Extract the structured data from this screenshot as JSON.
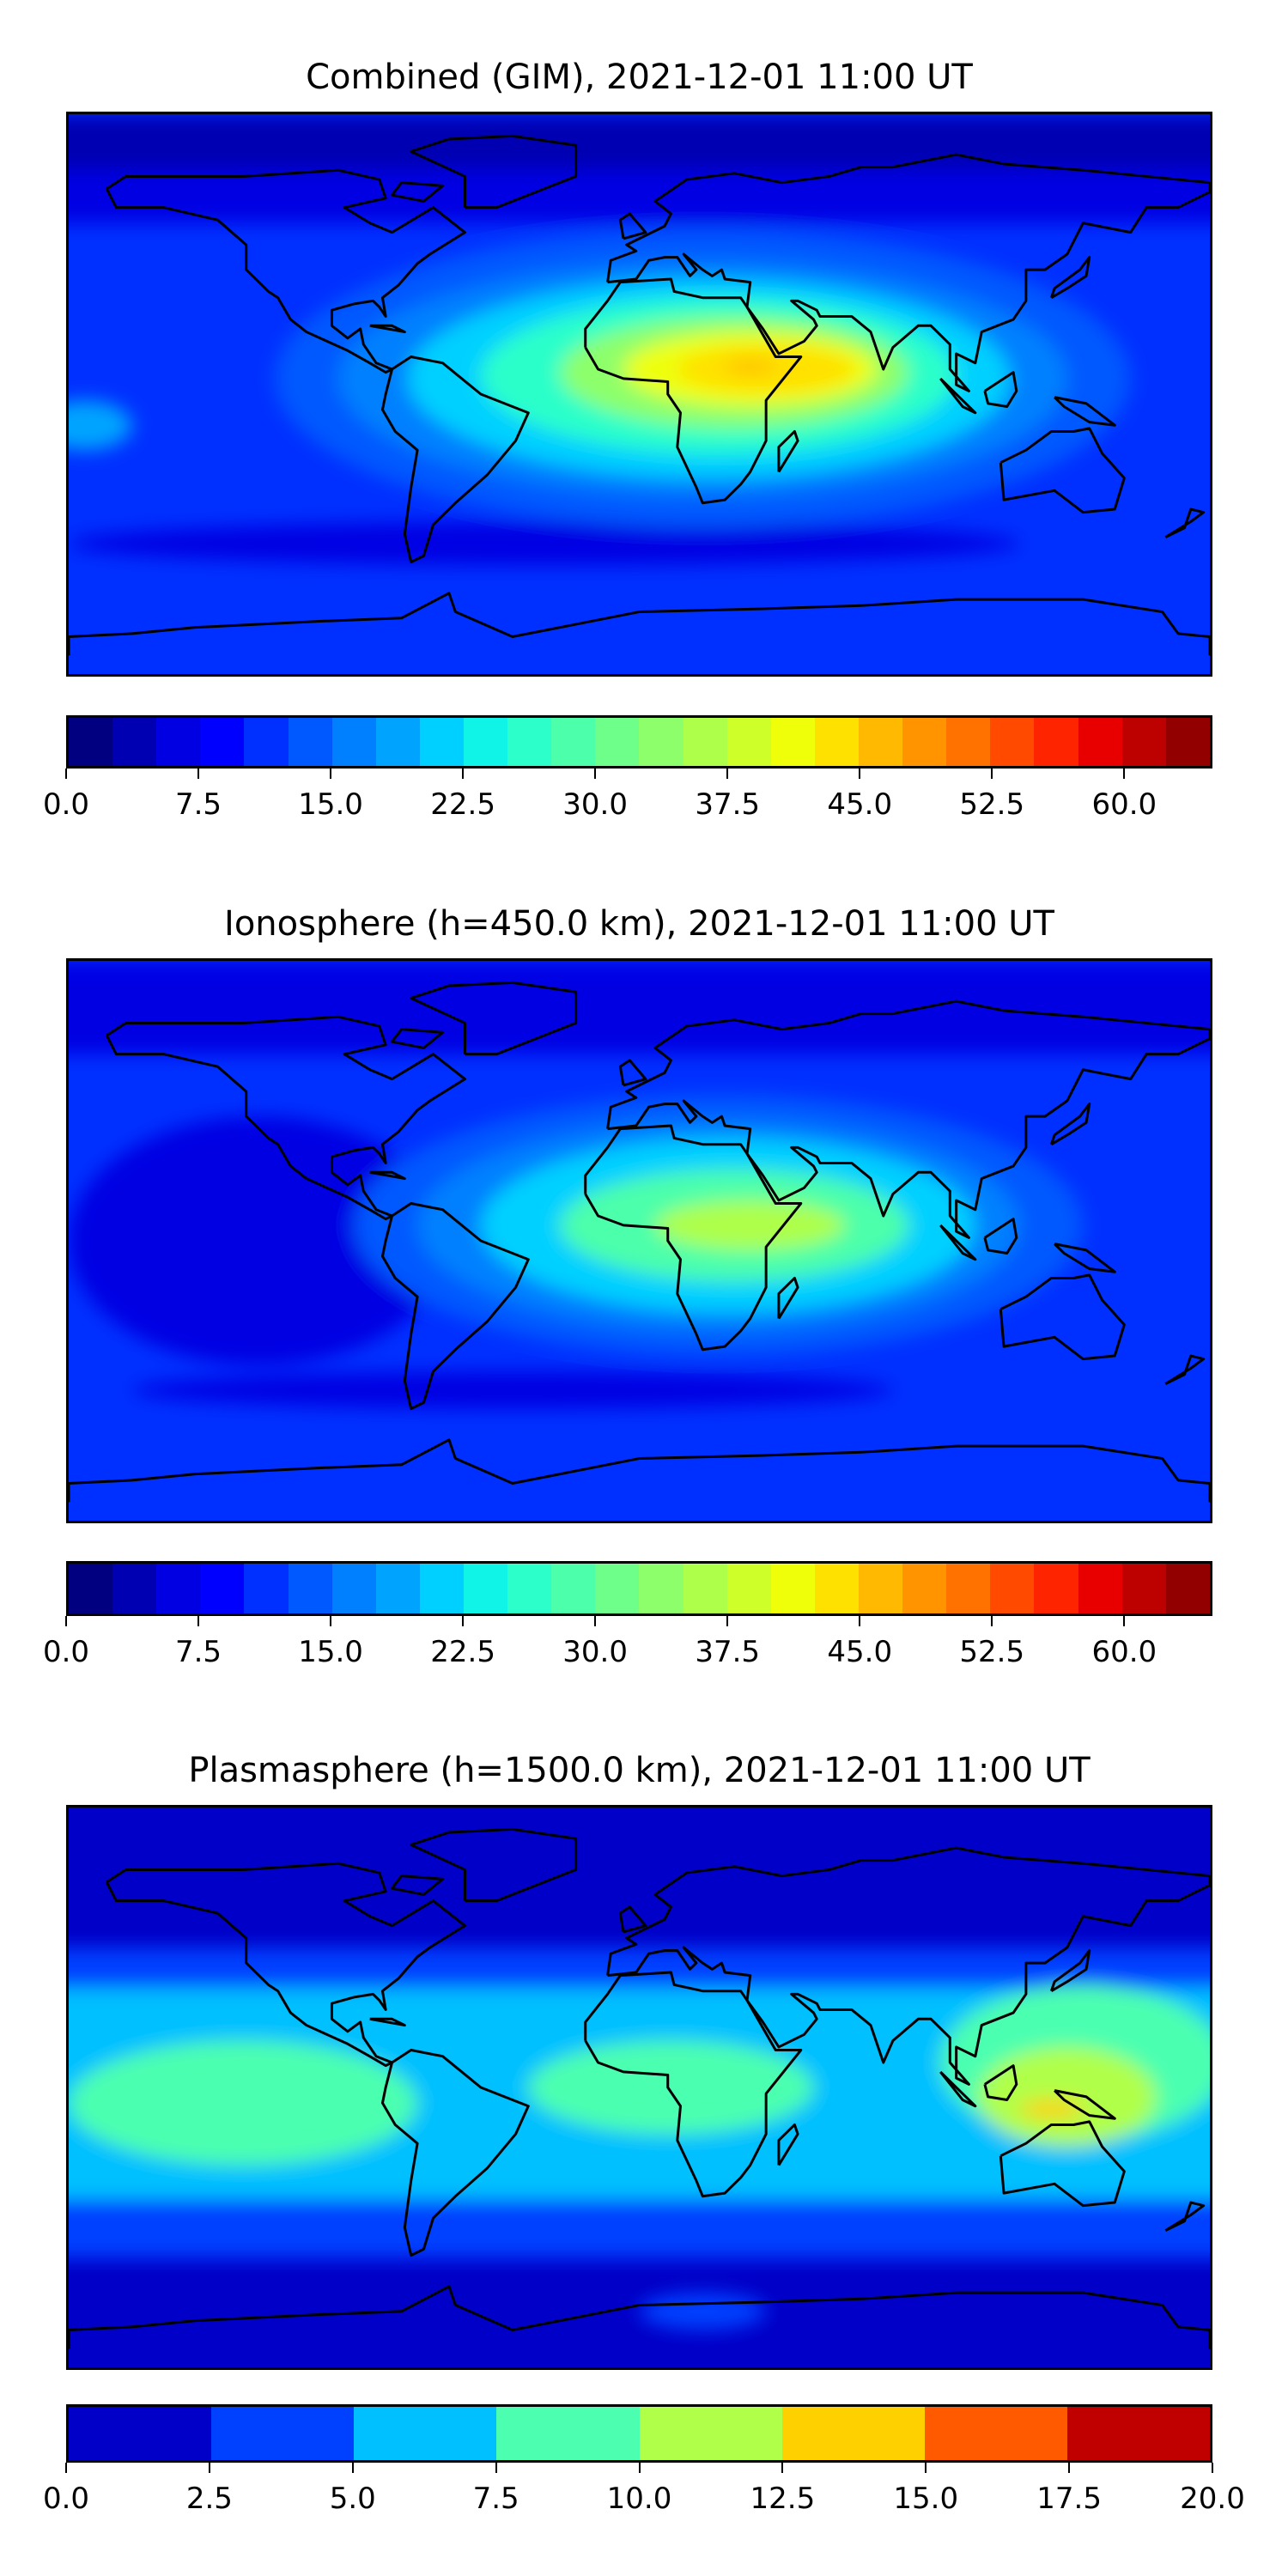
{
  "panels": [
    {
      "title": "Combined (GIM), 2021-12-01 11:00 UT",
      "colorbar": {
        "vmin": 0,
        "vmax": 65,
        "tick_values": [
          0,
          7.5,
          15,
          22.5,
          30,
          37.5,
          45,
          52.5,
          60
        ],
        "tick_labels": [
          "0.0",
          "7.5",
          "15.0",
          "22.5",
          "30.0",
          "37.5",
          "45.0",
          "52.5",
          "60.0"
        ],
        "colors": [
          "#000080",
          "#0000b2",
          "#0000e3",
          "#0000ff",
          "#0030ff",
          "#0058ff",
          "#0080ff",
          "#00a4ff",
          "#00d0ff",
          "#0ff4e6",
          "#2cffca",
          "#4cffab",
          "#6dff8a",
          "#8dff6a",
          "#aeff49",
          "#cfff28",
          "#eeff09",
          "#ffe100",
          "#ffb900",
          "#ff9400",
          "#ff7200",
          "#ff4a00",
          "#ff2400",
          "#e80000",
          "#bd0000",
          "#920000"
        ]
      }
    },
    {
      "title": "Ionosphere  (h=450.0 km), 2021-12-01 11:00 UT",
      "colorbar": {
        "vmin": 0,
        "vmax": 65,
        "tick_values": [
          0,
          7.5,
          15,
          22.5,
          30,
          37.5,
          45,
          52.5,
          60
        ],
        "tick_labels": [
          "0.0",
          "7.5",
          "15.0",
          "22.5",
          "30.0",
          "37.5",
          "45.0",
          "52.5",
          "60.0"
        ],
        "colors": [
          "#000080",
          "#0000b2",
          "#0000e3",
          "#0000ff",
          "#0030ff",
          "#0058ff",
          "#0080ff",
          "#00a4ff",
          "#00d0ff",
          "#0ff4e6",
          "#2cffca",
          "#4cffab",
          "#6dff8a",
          "#8dff6a",
          "#aeff49",
          "#cfff28",
          "#eeff09",
          "#ffe100",
          "#ffb900",
          "#ff9400",
          "#ff7200",
          "#ff4a00",
          "#ff2400",
          "#e80000",
          "#bd0000",
          "#920000"
        ]
      }
    },
    {
      "title": "Plasmasphere (h=1500.0 km), 2021-12-01 11:00 UT",
      "colorbar": {
        "vmin": 0,
        "vmax": 20,
        "tick_values": [
          0,
          2.5,
          5,
          7.5,
          10,
          12.5,
          15,
          17.5,
          20
        ],
        "tick_labels": [
          "0.0",
          "2.5",
          "5.0",
          "7.5",
          "10.0",
          "12.5",
          "15.0",
          "17.5",
          "20.0"
        ],
        "colors": [
          "#0000c8",
          "#0040ff",
          "#00c0ff",
          "#4cffb0",
          "#b0ff48",
          "#ffd000",
          "#ff5a00",
          "#c00000"
        ]
      }
    }
  ],
  "chart_data": [
    {
      "type": "heatmap",
      "title": "Combined (GIM), 2021-12-01 11:00 UT",
      "xlim": [
        -180,
        180
      ],
      "ylim": [
        -90,
        90
      ],
      "peak_region": "Africa / Arabian Sea",
      "peak_value_approx": 47.5
    },
    {
      "type": "heatmap",
      "title": "Ionosphere  (h=450.0 km), 2021-12-01 11:00 UT",
      "xlim": [
        -180,
        180
      ],
      "ylim": [
        -90,
        90
      ],
      "peak_region": "Africa / Indian Ocean",
      "peak_value_approx": 37.5
    },
    {
      "type": "heatmap",
      "title": "Plasmasphere (h=1500.0 km), 2021-12-01 11:00 UT",
      "xlim": [
        -180,
        180
      ],
      "ylim": [
        -90,
        90
      ],
      "peak_region": "Indonesia",
      "peak_value_approx": 13.5
    }
  ]
}
